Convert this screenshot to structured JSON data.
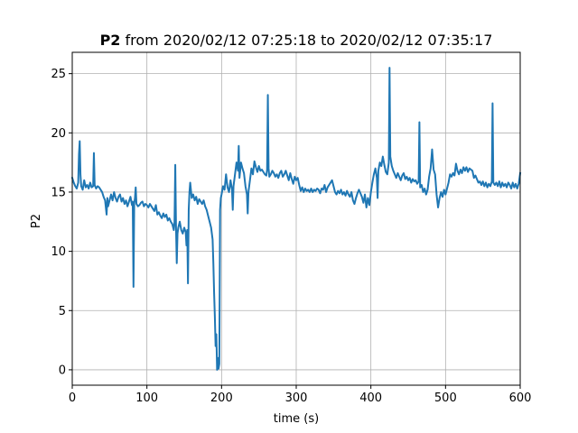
{
  "chart_data": {
    "type": "line",
    "title_bold": "P2",
    "title_rest": " from 2020/02/12 07:25:18 to 2020/02/12 07:35:17",
    "xlabel": "time (s)",
    "ylabel": "P2",
    "xlim": [
      0,
      600
    ],
    "ylim": [
      -1.3,
      26.8
    ],
    "grid": true,
    "xticks": [
      0,
      100,
      200,
      300,
      400,
      500,
      600
    ],
    "yticks": [
      0,
      5,
      10,
      15,
      20,
      25
    ],
    "series_color": "#1f77b4",
    "series": [
      {
        "points": [
          [
            0,
            16.2
          ],
          [
            2,
            15.8
          ],
          [
            4,
            15.5
          ],
          [
            6,
            15.3
          ],
          [
            8,
            15.8
          ],
          [
            9,
            18.2
          ],
          [
            10,
            19.3
          ],
          [
            11,
            16.5
          ],
          [
            12,
            15.5
          ],
          [
            14,
            15.2
          ],
          [
            16,
            16.0
          ],
          [
            18,
            15.4
          ],
          [
            20,
            15.6
          ],
          [
            22,
            15.3
          ],
          [
            24,
            15.8
          ],
          [
            26,
            15.4
          ],
          [
            28,
            15.5
          ],
          [
            29,
            18.3
          ],
          [
            30,
            15.6
          ],
          [
            32,
            15.3
          ],
          [
            34,
            15.5
          ],
          [
            36,
            15.4
          ],
          [
            38,
            15.2
          ],
          [
            40,
            15.0
          ],
          [
            42,
            14.6
          ],
          [
            44,
            14.3
          ],
          [
            46,
            13.1
          ],
          [
            47,
            14.5
          ],
          [
            48,
            13.8
          ],
          [
            50,
            14.3
          ],
          [
            52,
            14.8
          ],
          [
            54,
            14.3
          ],
          [
            56,
            15.0
          ],
          [
            58,
            14.5
          ],
          [
            60,
            14.2
          ],
          [
            62,
            14.6
          ],
          [
            64,
            14.8
          ],
          [
            66,
            14.2
          ],
          [
            68,
            14.5
          ],
          [
            70,
            14.0
          ],
          [
            72,
            14.3
          ],
          [
            74,
            13.8
          ],
          [
            76,
            14.2
          ],
          [
            78,
            14.6
          ],
          [
            80,
            13.9
          ],
          [
            81,
            14.2
          ],
          [
            82,
            7.0
          ],
          [
            83,
            14.0
          ],
          [
            84,
            14.5
          ],
          [
            85,
            15.4
          ],
          [
            86,
            14.0
          ],
          [
            88,
            13.8
          ],
          [
            90,
            13.9
          ],
          [
            92,
            14.1
          ],
          [
            94,
            14.2
          ],
          [
            96,
            13.8
          ],
          [
            98,
            14.0
          ],
          [
            100,
            13.9
          ],
          [
            102,
            13.7
          ],
          [
            104,
            14.0
          ],
          [
            106,
            13.8
          ],
          [
            108,
            13.6
          ],
          [
            110,
            13.4
          ],
          [
            112,
            13.9
          ],
          [
            114,
            13.1
          ],
          [
            116,
            13.3
          ],
          [
            118,
            13.0
          ],
          [
            120,
            12.8
          ],
          [
            122,
            13.2
          ],
          [
            124,
            12.9
          ],
          [
            126,
            13.1
          ],
          [
            128,
            12.6
          ],
          [
            130,
            12.8
          ],
          [
            132,
            12.5
          ],
          [
            134,
            12.3
          ],
          [
            136,
            11.8
          ],
          [
            137,
            12.5
          ],
          [
            138,
            17.3
          ],
          [
            139,
            12.0
          ],
          [
            140,
            9.0
          ],
          [
            141,
            11.5
          ],
          [
            142,
            12.0
          ],
          [
            144,
            12.5
          ],
          [
            146,
            11.8
          ],
          [
            148,
            11.5
          ],
          [
            150,
            12.0
          ],
          [
            152,
            11.6
          ],
          [
            153,
            10.5
          ],
          [
            154,
            11.8
          ],
          [
            155,
            7.3
          ],
          [
            156,
            13.5
          ],
          [
            157,
            15.0
          ],
          [
            158,
            15.8
          ],
          [
            160,
            14.5
          ],
          [
            162,
            14.8
          ],
          [
            164,
            14.3
          ],
          [
            166,
            14.6
          ],
          [
            168,
            14.0
          ],
          [
            170,
            14.4
          ],
          [
            172,
            14.2
          ],
          [
            174,
            14.0
          ],
          [
            176,
            14.3
          ],
          [
            178,
            13.8
          ],
          [
            180,
            13.5
          ],
          [
            182,
            13.0
          ],
          [
            184,
            12.5
          ],
          [
            186,
            12.0
          ],
          [
            188,
            11.0
          ],
          [
            189,
            9.0
          ],
          [
            190,
            6.5
          ],
          [
            191,
            4.5
          ],
          [
            192,
            2.0
          ],
          [
            193,
            3.0
          ],
          [
            194,
            0.0
          ],
          [
            195,
            1.0
          ],
          [
            196,
            0.1
          ],
          [
            197,
            0.5
          ],
          [
            198,
            13.5
          ],
          [
            199,
            14.5
          ],
          [
            200,
            14.8
          ],
          [
            202,
            15.5
          ],
          [
            204,
            15.2
          ],
          [
            206,
            16.5
          ],
          [
            208,
            15.4
          ],
          [
            210,
            15.0
          ],
          [
            212,
            16.0
          ],
          [
            214,
            15.2
          ],
          [
            215,
            13.5
          ],
          [
            216,
            15.5
          ],
          [
            218,
            16.5
          ],
          [
            220,
            17.5
          ],
          [
            222,
            16.8
          ],
          [
            223,
            18.9
          ],
          [
            224,
            16.2
          ],
          [
            226,
            17.5
          ],
          [
            228,
            17.0
          ],
          [
            230,
            16.6
          ],
          [
            232,
            15.5
          ],
          [
            234,
            14.8
          ],
          [
            235,
            13.2
          ],
          [
            236,
            15.0
          ],
          [
            238,
            16.0
          ],
          [
            240,
            17.0
          ],
          [
            242,
            16.5
          ],
          [
            244,
            17.6
          ],
          [
            246,
            17.1
          ],
          [
            248,
            16.7
          ],
          [
            250,
            17.2
          ],
          [
            252,
            16.8
          ],
          [
            254,
            16.9
          ],
          [
            256,
            16.7
          ],
          [
            258,
            16.5
          ],
          [
            260,
            16.4
          ],
          [
            261,
            16.9
          ],
          [
            262,
            23.2
          ],
          [
            263,
            17.0
          ],
          [
            264,
            16.3
          ],
          [
            266,
            16.5
          ],
          [
            268,
            16.8
          ],
          [
            270,
            16.6
          ],
          [
            272,
            16.3
          ],
          [
            274,
            16.5
          ],
          [
            276,
            16.2
          ],
          [
            278,
            16.6
          ],
          [
            280,
            16.8
          ],
          [
            282,
            16.3
          ],
          [
            284,
            16.5
          ],
          [
            286,
            16.8
          ],
          [
            288,
            16.4
          ],
          [
            290,
            16.0
          ],
          [
            292,
            16.6
          ],
          [
            294,
            16.1
          ],
          [
            296,
            15.7
          ],
          [
            298,
            16.3
          ],
          [
            300,
            16.0
          ],
          [
            302,
            16.2
          ],
          [
            304,
            15.6
          ],
          [
            306,
            15.1
          ],
          [
            308,
            15.4
          ],
          [
            310,
            15.0
          ],
          [
            312,
            15.3
          ],
          [
            314,
            15.1
          ],
          [
            316,
            15.2
          ],
          [
            318,
            15.0
          ],
          [
            320,
            15.3
          ],
          [
            322,
            15.0
          ],
          [
            324,
            15.2
          ],
          [
            326,
            15.1
          ],
          [
            328,
            15.3
          ],
          [
            330,
            15.2
          ],
          [
            332,
            14.9
          ],
          [
            334,
            15.3
          ],
          [
            336,
            15.2
          ],
          [
            338,
            15.6
          ],
          [
            340,
            15.0
          ],
          [
            342,
            15.4
          ],
          [
            344,
            15.6
          ],
          [
            346,
            15.8
          ],
          [
            348,
            16.0
          ],
          [
            350,
            15.5
          ],
          [
            352,
            15.0
          ],
          [
            354,
            14.8
          ],
          [
            356,
            15.1
          ],
          [
            358,
            14.9
          ],
          [
            360,
            15.2
          ],
          [
            362,
            14.8
          ],
          [
            364,
            15.0
          ],
          [
            366,
            14.7
          ],
          [
            368,
            15.1
          ],
          [
            370,
            14.8
          ],
          [
            372,
            14.6
          ],
          [
            374,
            15.0
          ],
          [
            376,
            14.3
          ],
          [
            378,
            14.0
          ],
          [
            380,
            14.5
          ],
          [
            382,
            14.9
          ],
          [
            384,
            15.2
          ],
          [
            386,
            14.9
          ],
          [
            388,
            14.6
          ],
          [
            390,
            14.1
          ],
          [
            392,
            14.8
          ],
          [
            394,
            13.7
          ],
          [
            396,
            14.5
          ],
          [
            398,
            13.9
          ],
          [
            400,
            15.0
          ],
          [
            402,
            15.8
          ],
          [
            404,
            16.5
          ],
          [
            406,
            17.0
          ],
          [
            408,
            16.2
          ],
          [
            409,
            14.5
          ],
          [
            410,
            16.8
          ],
          [
            412,
            17.5
          ],
          [
            414,
            17.2
          ],
          [
            416,
            18.0
          ],
          [
            418,
            17.3
          ],
          [
            420,
            16.7
          ],
          [
            422,
            16.5
          ],
          [
            424,
            17.5
          ],
          [
            425,
            25.5
          ],
          [
            426,
            18.0
          ],
          [
            428,
            17.2
          ],
          [
            430,
            16.8
          ],
          [
            432,
            16.5
          ],
          [
            434,
            16.2
          ],
          [
            436,
            16.6
          ],
          [
            438,
            16.3
          ],
          [
            440,
            16.0
          ],
          [
            442,
            16.4
          ],
          [
            444,
            16.6
          ],
          [
            446,
            16.1
          ],
          [
            448,
            16.3
          ],
          [
            450,
            16.0
          ],
          [
            452,
            16.2
          ],
          [
            454,
            15.8
          ],
          [
            456,
            16.1
          ],
          [
            458,
            15.9
          ],
          [
            460,
            16.0
          ],
          [
            462,
            15.7
          ],
          [
            464,
            15.9
          ],
          [
            465,
            20.9
          ],
          [
            466,
            15.4
          ],
          [
            468,
            15.6
          ],
          [
            470,
            15.0
          ],
          [
            472,
            15.3
          ],
          [
            474,
            14.8
          ],
          [
            476,
            15.2
          ],
          [
            478,
            16.3
          ],
          [
            480,
            17.0
          ],
          [
            482,
            18.6
          ],
          [
            484,
            16.9
          ],
          [
            486,
            16.5
          ],
          [
            488,
            14.8
          ],
          [
            490,
            13.7
          ],
          [
            492,
            14.5
          ],
          [
            494,
            15.0
          ],
          [
            496,
            14.6
          ],
          [
            498,
            15.2
          ],
          [
            500,
            14.8
          ],
          [
            502,
            15.3
          ],
          [
            504,
            15.8
          ],
          [
            506,
            16.5
          ],
          [
            508,
            16.3
          ],
          [
            510,
            16.6
          ],
          [
            512,
            16.4
          ],
          [
            514,
            17.4
          ],
          [
            516,
            16.8
          ],
          [
            518,
            16.5
          ],
          [
            520,
            16.9
          ],
          [
            522,
            16.6
          ],
          [
            524,
            17.1
          ],
          [
            526,
            16.8
          ],
          [
            528,
            17.1
          ],
          [
            530,
            16.7
          ],
          [
            532,
            17.0
          ],
          [
            534,
            16.9
          ],
          [
            536,
            16.8
          ],
          [
            538,
            16.2
          ],
          [
            540,
            16.4
          ],
          [
            542,
            16.1
          ],
          [
            544,
            15.8
          ],
          [
            546,
            15.9
          ],
          [
            548,
            15.6
          ],
          [
            550,
            15.9
          ],
          [
            552,
            15.5
          ],
          [
            554,
            15.8
          ],
          [
            556,
            15.4
          ],
          [
            558,
            15.7
          ],
          [
            560,
            15.5
          ],
          [
            562,
            15.9
          ],
          [
            563,
            22.5
          ],
          [
            564,
            15.8
          ],
          [
            566,
            15.6
          ],
          [
            568,
            15.8
          ],
          [
            570,
            15.5
          ],
          [
            572,
            15.9
          ],
          [
            574,
            15.4
          ],
          [
            576,
            15.8
          ],
          [
            578,
            15.5
          ],
          [
            580,
            15.7
          ],
          [
            582,
            15.4
          ],
          [
            584,
            15.8
          ],
          [
            586,
            15.6
          ],
          [
            588,
            15.3
          ],
          [
            590,
            15.8
          ],
          [
            592,
            15.4
          ],
          [
            594,
            15.7
          ],
          [
            596,
            15.3
          ],
          [
            598,
            15.7
          ],
          [
            600,
            16.6
          ]
        ]
      }
    ]
  }
}
